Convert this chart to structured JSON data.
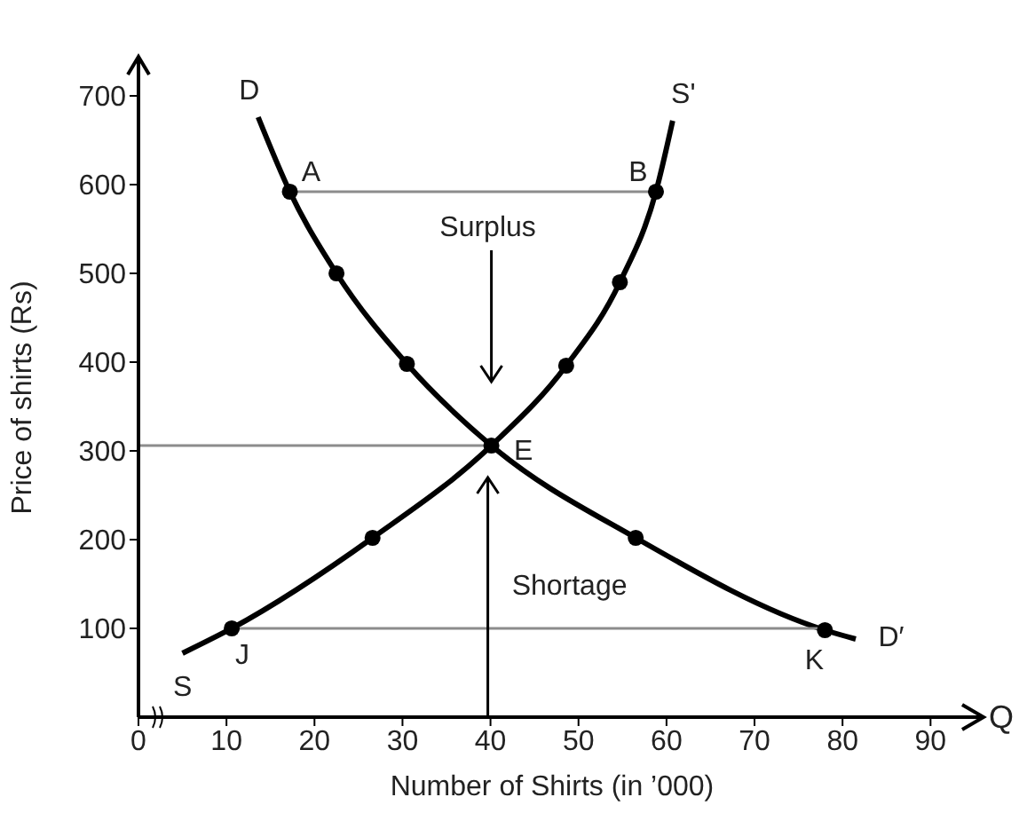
{
  "chart_data": {
    "type": "line",
    "xlabel": "Number of Shirts (in ’000)",
    "ylabel": "Price of shirts (Rs)",
    "xlim": [
      0,
      94
    ],
    "ylim": [
      0,
      720
    ],
    "xticks": [
      0,
      10,
      20,
      30,
      40,
      50,
      60,
      70,
      80,
      90
    ],
    "yticks": [
      100,
      200,
      300,
      400,
      500,
      600,
      700
    ],
    "grid": false,
    "line_style": "solid",
    "series": [
      {
        "marker": "none",
        "color": "#000000",
        "x": [
          13.6,
          17.2,
          22.5,
          30.5,
          40.1,
          56.5,
          78,
          81.5
        ],
        "values": [
          676,
          592,
          500,
          398,
          306,
          202,
          98,
          88
        ]
      },
      {
        "marker": "none",
        "color": "#000000",
        "x": [
          5,
          10.6,
          26.6,
          40.1,
          48.6,
          54.7,
          58.8,
          60.7
        ],
        "values": [
          72,
          100,
          202,
          306,
          396,
          490,
          592,
          672
        ]
      },
      {
        "type": "line",
        "marker": "none",
        "color": "#8c8c8c",
        "x": [
          17.2,
          58.8
        ],
        "values": [
          592,
          592
        ]
      },
      {
        "type": "line",
        "marker": "none",
        "color": "#8c8c8c",
        "x": [
          0,
          40.1
        ],
        "values": [
          306,
          306
        ]
      },
      {
        "type": "line",
        "marker": "none",
        "color": "#8c8c8c",
        "x": [
          10.6,
          78
        ],
        "values": [
          100,
          100
        ]
      },
      {
        "type": "scatter",
        "marker": "circle",
        "color": "#000000",
        "x": [
          17.2,
          22.5,
          30.5,
          40.1,
          56.5,
          78,
          10.6,
          26.6,
          48.6,
          54.7,
          58.8
        ],
        "values": [
          592,
          500,
          398,
          306,
          202,
          98,
          100,
          202,
          396,
          490,
          592
        ]
      }
    ],
    "annotations": [
      "D",
      "A",
      "B",
      "S'",
      "E",
      "J",
      "K",
      "D′",
      "S",
      "Surplus",
      "Shortage",
      "Q"
    ]
  }
}
